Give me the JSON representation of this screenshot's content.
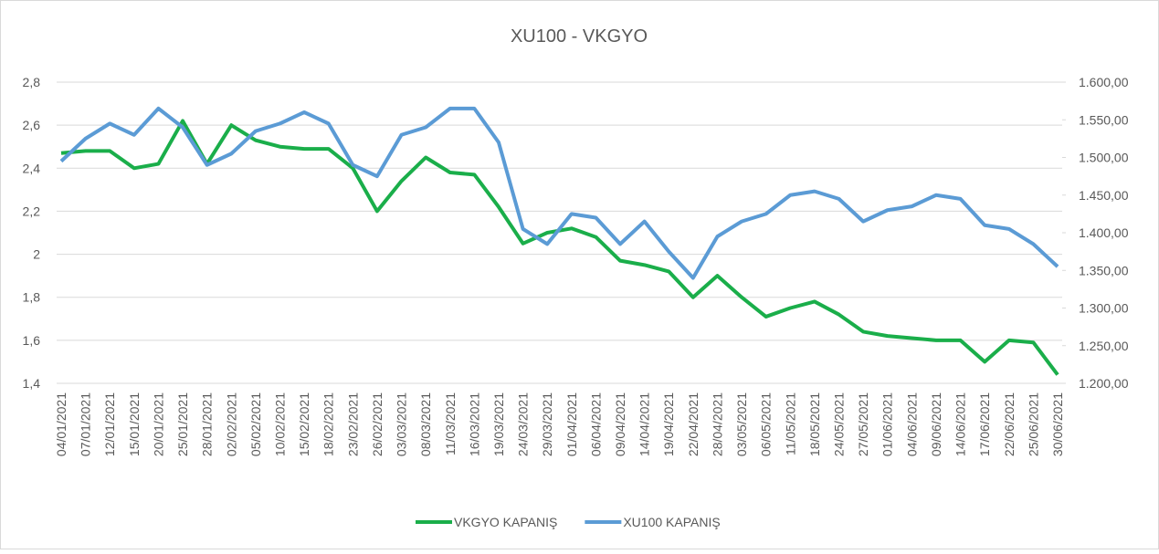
{
  "chart_data": {
    "type": "line",
    "title": "XU100 - VKGYO",
    "categories": [
      "04/01/2021",
      "07/01/2021",
      "12/01/2021",
      "15/01/2021",
      "20/01/2021",
      "25/01/2021",
      "28/01/2021",
      "02/02/2021",
      "05/02/2021",
      "10/02/2021",
      "15/02/2021",
      "18/02/2021",
      "23/02/2021",
      "26/02/2021",
      "03/03/2021",
      "08/03/2021",
      "11/03/2021",
      "16/03/2021",
      "19/03/2021",
      "24/03/2021",
      "29/03/2021",
      "01/04/2021",
      "06/04/2021",
      "09/04/2021",
      "14/04/2021",
      "19/04/2021",
      "22/04/2021",
      "28/04/2021",
      "03/05/2021",
      "06/05/2021",
      "11/05/2021",
      "18/05/2021",
      "24/05/2021",
      "27/05/2021",
      "01/06/2021",
      "04/06/2021",
      "09/06/2021",
      "14/06/2021",
      "17/06/2021",
      "22/06/2021",
      "25/06/2021",
      "30/06/2021"
    ],
    "series": [
      {
        "name": "VKGYO KAPANIŞ",
        "color": "#1aae4a",
        "values": [
          2.47,
          2.48,
          2.48,
          2.4,
          2.42,
          2.62,
          2.42,
          2.6,
          2.53,
          2.5,
          2.49,
          2.49,
          2.4,
          2.2,
          2.34,
          2.45,
          2.38,
          2.37,
          2.22,
          2.05,
          2.1,
          2.12,
          2.08,
          1.97,
          1.95,
          1.92,
          1.8,
          1.9,
          1.8,
          1.71,
          1.75,
          1.78,
          1.72,
          1.64,
          1.62,
          1.61,
          1.6,
          1.6,
          1.5,
          1.6,
          1.59,
          1.44
        ]
      },
      {
        "name": "XU100 KAPANIŞ",
        "color": "#5b9bd5",
        "axis": "y2",
        "values": [
          1495,
          1525,
          1545,
          1530,
          1565,
          1540,
          1490,
          1505,
          1535,
          1545,
          1560,
          1545,
          1490,
          1475,
          1530,
          1540,
          1565,
          1565,
          1520,
          1405,
          1385,
          1425,
          1420,
          1385,
          1415,
          1375,
          1340,
          1395,
          1415,
          1425,
          1450,
          1455,
          1445,
          1415,
          1430,
          1435,
          1450,
          1445,
          1410,
          1405,
          1385,
          1355
        ]
      }
    ],
    "ylim": [
      1.4,
      2.8
    ],
    "yticks": [
      {
        "value": 1.4,
        "label": "1,4"
      },
      {
        "value": 1.6,
        "label": "1,6"
      },
      {
        "value": 1.8,
        "label": "1,8"
      },
      2,
      {
        "value": 2.2,
        "label": "2,2"
      },
      {
        "value": 2.4,
        "label": "2,4"
      },
      {
        "value": 2.6,
        "label": "2,6"
      },
      {
        "value": 2.8,
        "label": "2,8"
      }
    ],
    "y2lim": [
      1200,
      1600
    ],
    "y2ticks": [
      {
        "value": 1200,
        "label": "1.200,00"
      },
      {
        "value": 1250,
        "label": "1.250,00"
      },
      {
        "value": 1300,
        "label": "1.300,00"
      },
      {
        "value": 1350,
        "label": "1.350,00"
      },
      {
        "value": 1400,
        "label": "1.400,00"
      },
      {
        "value": 1450,
        "label": "1.450,00"
      },
      {
        "value": 1500,
        "label": "1.500,00"
      },
      {
        "value": 1550,
        "label": "1.550,00"
      },
      {
        "value": 1600,
        "label": "1.600,00"
      }
    ],
    "grid": true,
    "legend": "bottom"
  }
}
